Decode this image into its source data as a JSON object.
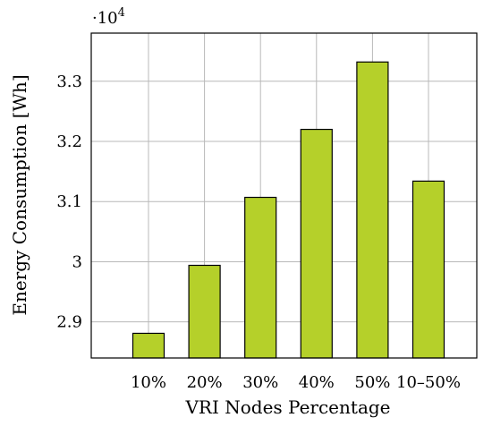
{
  "chart_data": {
    "type": "bar",
    "categories": [
      "10%",
      "20%",
      "30%",
      "40%",
      "50%",
      "10–50%"
    ],
    "values": [
      28810,
      29940,
      31070,
      32200,
      33320,
      31340
    ],
    "xlabel": "VRI Nodes Percentage",
    "ylabel": "Energy Consumption [Wh]",
    "ylim": [
      28400,
      33800
    ],
    "yticks": [
      29000,
      30000,
      31000,
      32000,
      33000
    ],
    "ytick_labels": [
      "2.9",
      "3",
      "3.1",
      "3.2",
      "3.3"
    ],
    "scale_label": "·10",
    "scale_exponent": "4",
    "grid": true,
    "bar_color": "#b5d02a"
  }
}
